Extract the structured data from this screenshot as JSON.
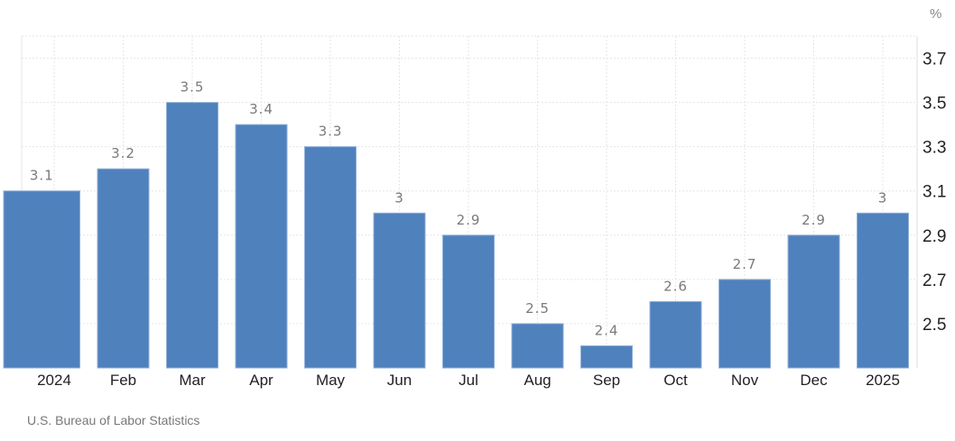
{
  "chart_data": {
    "type": "bar",
    "title": "",
    "unit_label": "%",
    "categories": [
      "2024",
      "Feb",
      "Mar",
      "Apr",
      "May",
      "Jun",
      "Jul",
      "Aug",
      "Sep",
      "Oct",
      "Nov",
      "Dec",
      "2025"
    ],
    "values": [
      3.1,
      3.2,
      3.5,
      3.4,
      3.3,
      3.0,
      2.9,
      2.5,
      2.4,
      2.6,
      2.7,
      2.9,
      3.0
    ],
    "data_labels": [
      "3.1",
      "3.2",
      "3.5",
      "3.4",
      "3.3",
      "3",
      "2.9",
      "2.5",
      "2.4",
      "2.6",
      "2.7",
      "2.9",
      "3"
    ],
    "yticks": [
      "2.5",
      "2.7",
      "2.9",
      "3.1",
      "3.3",
      "3.5",
      "3.7"
    ],
    "ylim": [
      2.3,
      3.8
    ],
    "y_axis_side": "right",
    "grid": true,
    "bar_color": "#4f81bd",
    "label_color": "#7a7a7a"
  },
  "source": "U.S. Bureau of Labor Statistics"
}
